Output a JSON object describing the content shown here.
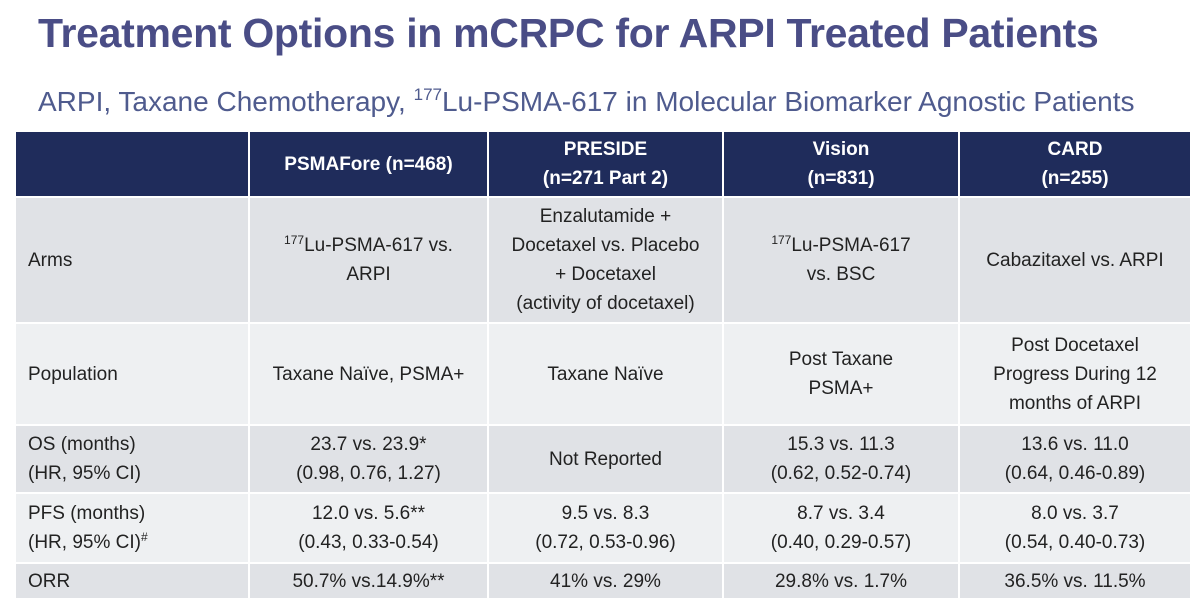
{
  "title": "Treatment Options in mCRPC for ARPI Treated Patients",
  "subtitle": [
    "ARPI, Taxane Chemotherapy, ",
    {
      "sup": "177"
    },
    "Lu-PSMA-617 in Molecular Biomarker Agnostic Patients"
  ],
  "table": {
    "columns": [
      [
        "PSMAFore (n=468)"
      ],
      [
        "PRESIDE",
        "(n=271 Part 2)"
      ],
      [
        "Vision",
        "(n=831)"
      ],
      [
        "CARD",
        "(n=255)"
      ]
    ],
    "rows": [
      {
        "label": [
          "Arms"
        ],
        "cells": [
          [
            [
              {
                "sup": "177"
              },
              "Lu-PSMA-617 vs."
            ],
            "ARPI"
          ],
          [
            "Enzalutamide +",
            "Docetaxel vs. Placebo",
            "+ Docetaxel",
            "(activity of docetaxel)"
          ],
          [
            [
              {
                "sup": "177"
              },
              "Lu-PSMA-617"
            ],
            "vs. BSC"
          ],
          [
            "Cabazitaxel vs. ARPI"
          ]
        ]
      },
      {
        "label": [
          "Population"
        ],
        "cells": [
          [
            "Taxane Naïve, PSMA+"
          ],
          [
            "Taxane Naïve"
          ],
          [
            "Post Taxane",
            "PSMA+"
          ],
          [
            "Post Docetaxel",
            "Progress During 12",
            "months of ARPI"
          ]
        ]
      },
      {
        "label": [
          "OS (months)",
          "(HR, 95% CI)"
        ],
        "cells": [
          [
            "23.7 vs. 23.9*",
            "(0.98, 0.76, 1.27)"
          ],
          [
            "Not Reported"
          ],
          [
            "15.3 vs. 11.3",
            "(0.62, 0.52-0.74)"
          ],
          [
            "13.6 vs. 11.0",
            "(0.64, 0.46-0.89)"
          ]
        ]
      },
      {
        "label": [
          "PFS (months)",
          [
            "(HR, 95% CI)",
            {
              "sup": "#"
            }
          ]
        ],
        "cells": [
          [
            "12.0 vs. 5.6**",
            "(0.43, 0.33-0.54)"
          ],
          [
            "9.5 vs. 8.3",
            "(0.72, 0.53-0.96)"
          ],
          [
            "8.7 vs. 3.4",
            "(0.40, 0.29-0.57)"
          ],
          [
            "8.0 vs. 3.7",
            "(0.54, 0.40-0.73)"
          ]
        ]
      },
      {
        "label": [
          "ORR"
        ],
        "cells": [
          [
            "50.7% vs.14.9%**"
          ],
          [
            "41% vs. 29%"
          ],
          [
            "29.8% vs. 1.7%"
          ],
          [
            "36.5% vs. 11.5%"
          ]
        ]
      }
    ]
  }
}
